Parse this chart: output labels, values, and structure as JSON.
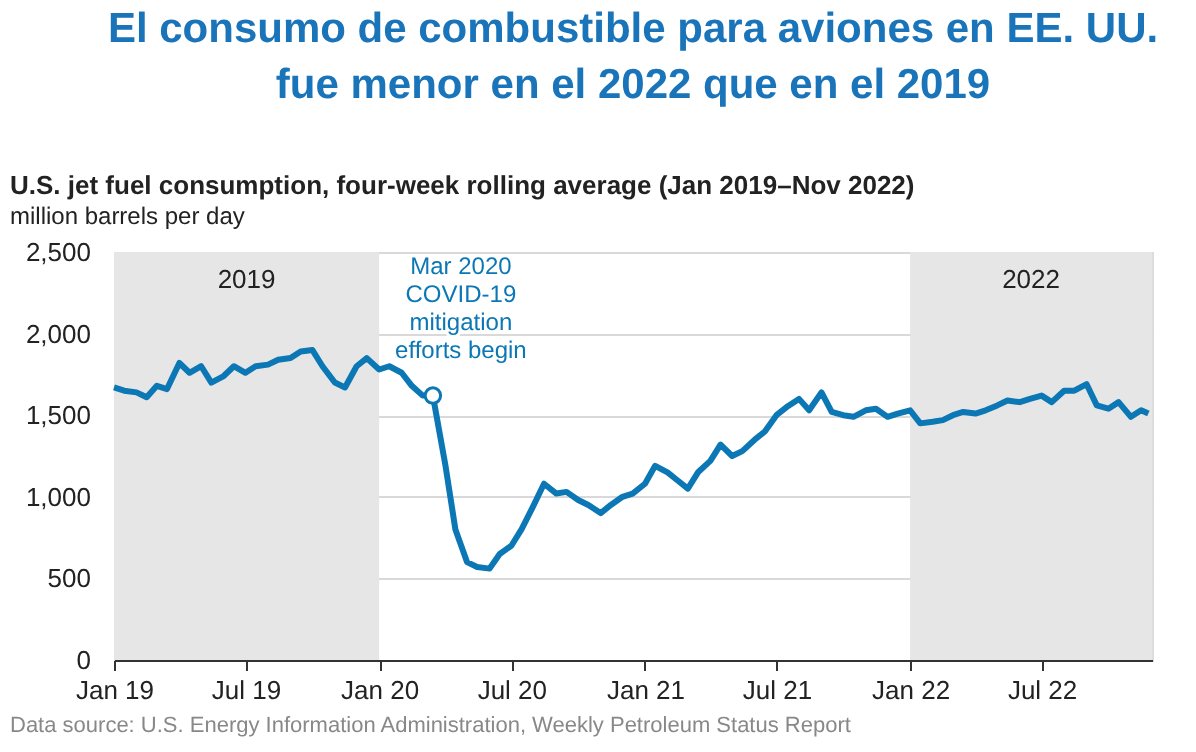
{
  "chart_data": {
    "type": "line",
    "title": "El consumo de combustible para aviones en EE. UU.\nfue menor en el 2022 que en el 2019",
    "subtitle": "U.S. jet fuel consumption, four-week rolling average (Jan 2019–Nov 2022)",
    "ylabel": "million barrels per day",
    "x": [
      "2019-01-01",
      "2019-01-15",
      "2019-02-01",
      "2019-02-15",
      "2019-03-01",
      "2019-03-15",
      "2019-04-01",
      "2019-04-15",
      "2019-05-01",
      "2019-05-15",
      "2019-06-01",
      "2019-06-15",
      "2019-07-01",
      "2019-07-15",
      "2019-08-01",
      "2019-08-15",
      "2019-09-01",
      "2019-09-15",
      "2019-10-01",
      "2019-10-15",
      "2019-11-01",
      "2019-11-15",
      "2019-12-01",
      "2019-12-15",
      "2020-01-01",
      "2020-01-15",
      "2020-02-01",
      "2020-02-15",
      "2020-03-01",
      "2020-03-15",
      "2020-04-01",
      "2020-04-15",
      "2020-05-01",
      "2020-05-15",
      "2020-06-01",
      "2020-06-15",
      "2020-07-01",
      "2020-07-15",
      "2020-08-01",
      "2020-08-15",
      "2020-09-01",
      "2020-09-15",
      "2020-10-01",
      "2020-10-15",
      "2020-11-01",
      "2020-11-15",
      "2020-12-01",
      "2020-12-15",
      "2021-01-01",
      "2021-01-15",
      "2021-02-01",
      "2021-02-15",
      "2021-03-01",
      "2021-03-15",
      "2021-04-01",
      "2021-04-15",
      "2021-05-01",
      "2021-05-15",
      "2021-06-01",
      "2021-06-15",
      "2021-07-01",
      "2021-07-15",
      "2021-08-01",
      "2021-08-15",
      "2021-09-01",
      "2021-09-15",
      "2021-10-01",
      "2021-10-15",
      "2021-11-01",
      "2021-11-15",
      "2021-12-01",
      "2021-12-15",
      "2022-01-01",
      "2022-01-15",
      "2022-02-01",
      "2022-02-15",
      "2022-03-01",
      "2022-03-15",
      "2022-04-01",
      "2022-04-15",
      "2022-05-01",
      "2022-05-15",
      "2022-06-01",
      "2022-06-15",
      "2022-07-01",
      "2022-07-15",
      "2022-08-01",
      "2022-08-15",
      "2022-09-01",
      "2022-09-15",
      "2022-10-01",
      "2022-10-15",
      "2022-11-01",
      "2022-11-15",
      "2022-11-25"
    ],
    "series": [
      {
        "color": "#0b77b5",
        "values": [
          1670,
          1650,
          1640,
          1610,
          1680,
          1660,
          1820,
          1760,
          1800,
          1700,
          1740,
          1800,
          1760,
          1800,
          1810,
          1840,
          1850,
          1890,
          1900,
          1800,
          1700,
          1670,
          1800,
          1850,
          1780,
          1800,
          1760,
          1680,
          1620,
          1620,
          1200,
          800,
          600,
          570,
          560,
          650,
          700,
          800,
          950,
          1080,
          1020,
          1030,
          980,
          950,
          900,
          950,
          1000,
          1020,
          1080,
          1190,
          1150,
          1100,
          1050,
          1150,
          1220,
          1320,
          1250,
          1280,
          1350,
          1400,
          1500,
          1550,
          1600,
          1530,
          1640,
          1520,
          1500,
          1490,
          1530,
          1540,
          1490,
          1510,
          1530,
          1450,
          1460,
          1470,
          1500,
          1520,
          1510,
          1530,
          1560,
          1590,
          1580,
          1600,
          1620,
          1580,
          1650,
          1650,
          1690,
          1560,
          1540,
          1580,
          1490,
          1530,
          1510
        ]
      }
    ],
    "xlim": [
      "2019-01-01",
      "2022-11-30"
    ],
    "xticks": [
      {
        "value": "2019-01-01",
        "label": "Jan 19"
      },
      {
        "value": "2019-07-01",
        "label": "Jul 19"
      },
      {
        "value": "2020-01-01",
        "label": "Jan 20"
      },
      {
        "value": "2020-07-01",
        "label": "Jul 20"
      },
      {
        "value": "2021-01-01",
        "label": "Jan 21"
      },
      {
        "value": "2021-07-01",
        "label": "Jul 21"
      },
      {
        "value": "2022-01-01",
        "label": "Jan 22"
      },
      {
        "value": "2022-07-01",
        "label": "Jul 22"
      }
    ],
    "ylim": [
      0,
      2500
    ],
    "yticks": [
      {
        "value": 0,
        "label": "0"
      },
      {
        "value": 500,
        "label": "500"
      },
      {
        "value": 1000,
        "label": "1,000"
      },
      {
        "value": 1500,
        "label": "1,500"
      },
      {
        "value": 2000,
        "label": "2,000"
      },
      {
        "value": 2500,
        "label": "2,500"
      }
    ],
    "grid": "y",
    "bands": [
      {
        "axis": "x",
        "from": "2019-01-01",
        "to": "2020-01-01",
        "label": "2019",
        "color": "#e6e6e6"
      },
      {
        "axis": "x",
        "from": "2022-01-01",
        "to": "2022-11-30",
        "label": "2022",
        "color": "#e6e6e6"
      }
    ],
    "annotations": [
      {
        "text": "Mar 2020\nCOVID-19\nmitigation\nefforts begin",
        "x": "2020-03-15",
        "y": 1620
      },
      "Data source: U.S. Energy Information Administration, Weekly Petroleum Status Report"
    ]
  }
}
